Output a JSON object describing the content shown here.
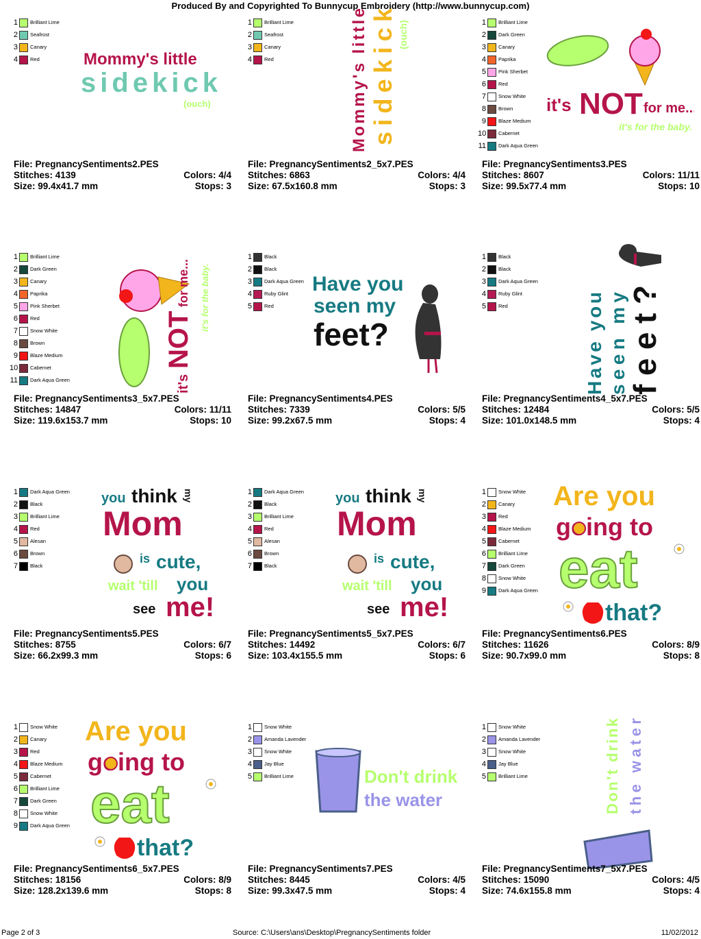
{
  "header": "Produced By and Copyrighted To Bunnycup Embroidery (http://www.bunnycup.com)",
  "labels": {
    "file": "File: ",
    "stitches": "Stitches: ",
    "colors": "Colors: ",
    "size": "Size: ",
    "stops": "Stops: "
  },
  "designs": [
    {
      "file": "PregnancySentiments2.PES",
      "stitches": "4139",
      "colors": "4/4",
      "size": "99.4x41.7 mm",
      "stops": "3",
      "palette": [
        {
          "name": "Brilliant Lime",
          "color": "#b6ff6e"
        },
        {
          "name": "Seafrost",
          "color": "#6fc9b0"
        },
        {
          "name": "Canary",
          "color": "#f2b51c"
        },
        {
          "name": "Red",
          "color": "#b5144a"
        }
      ],
      "art": [
        "Mommy's little",
        "sidekick",
        "(ouch)"
      ]
    },
    {
      "file": "PregnancySentiments2_5x7.PES",
      "stitches": "6863",
      "colors": "4/4",
      "size": "67.5x160.8 mm",
      "stops": "3",
      "palette": [
        {
          "name": "Brilliant Lime",
          "color": "#b6ff6e"
        },
        {
          "name": "Seafrost",
          "color": "#6fc9b0"
        },
        {
          "name": "Canary",
          "color": "#f2b51c"
        },
        {
          "name": "Red",
          "color": "#b5144a"
        }
      ],
      "art": [
        "Mommy's little",
        "sidekick",
        "(ouch)"
      ]
    },
    {
      "file": "PregnancySentiments3.PES",
      "stitches": "8607",
      "colors": "11/11",
      "size": "99.5x77.4 mm",
      "stops": "10",
      "palette": [
        {
          "name": "Brilliant Lime",
          "color": "#b6ff6e"
        },
        {
          "name": "Dark Green",
          "color": "#15473a"
        },
        {
          "name": "Canary",
          "color": "#f2b51c"
        },
        {
          "name": "Paprika",
          "color": "#f2642a"
        },
        {
          "name": "Pink Sherbet",
          "color": "#ffa6e8"
        },
        {
          "name": "Red",
          "color": "#b5144a"
        },
        {
          "name": "Snow White",
          "color": "#ffffff"
        },
        {
          "name": "Brown",
          "color": "#6b4a3f"
        },
        {
          "name": "Blaze Medium",
          "color": "#f21616"
        },
        {
          "name": "Cabernet",
          "color": "#7a2a3b"
        },
        {
          "name": "Dark Aqua Green",
          "color": "#167a82"
        }
      ],
      "art": [
        "it's",
        "NOT",
        "for me...",
        "it's for the baby."
      ]
    },
    {
      "file": "PregnancySentiments3_5x7.PES",
      "stitches": "14847",
      "colors": "11/11",
      "size": "119.6x153.7 mm",
      "stops": "10",
      "palette": [
        {
          "name": "Brilliant Lime",
          "color": "#b6ff6e"
        },
        {
          "name": "Dark Green",
          "color": "#15473a"
        },
        {
          "name": "Canary",
          "color": "#f2b51c"
        },
        {
          "name": "Paprika",
          "color": "#f2642a"
        },
        {
          "name": "Pink Sherbet",
          "color": "#ffa6e8"
        },
        {
          "name": "Red",
          "color": "#b5144a"
        },
        {
          "name": "Snow White",
          "color": "#ffffff"
        },
        {
          "name": "Brown",
          "color": "#6b4a3f"
        },
        {
          "name": "Blaze Medium",
          "color": "#f21616"
        },
        {
          "name": "Cabernet",
          "color": "#7a2a3b"
        },
        {
          "name": "Dark Aqua Green",
          "color": "#167a82"
        }
      ],
      "art": [
        "it's",
        "NOT",
        "for me...",
        "it's for the baby."
      ]
    },
    {
      "file": "PregnancySentiments4.PES",
      "stitches": "7339",
      "colors": "5/5",
      "size": "99.2x67.5 mm",
      "stops": "4",
      "palette": [
        {
          "name": "Black",
          "color": "#333333"
        },
        {
          "name": "Black",
          "color": "#111111"
        },
        {
          "name": "Dark Aqua Green",
          "color": "#167a82"
        },
        {
          "name": "Ruby Glint",
          "color": "#b51a55"
        },
        {
          "name": "Red",
          "color": "#b5144a"
        }
      ],
      "art": [
        "Have you",
        "seen my",
        "feet?"
      ]
    },
    {
      "file": "PregnancySentiments4_5x7.PES",
      "stitches": "12484",
      "colors": "5/5",
      "size": "101.0x148.5 mm",
      "stops": "4",
      "palette": [
        {
          "name": "Black",
          "color": "#333333"
        },
        {
          "name": "Black",
          "color": "#111111"
        },
        {
          "name": "Dark Aqua Green",
          "color": "#167a82"
        },
        {
          "name": "Ruby Glint",
          "color": "#b51a55"
        },
        {
          "name": "Red",
          "color": "#b5144a"
        }
      ],
      "art": [
        "Have you",
        "seen my",
        "feet?"
      ]
    },
    {
      "file": "PregnancySentiments5.PES",
      "stitches": "8755",
      "colors": "6/7",
      "size": "66.2x99.3 mm",
      "stops": "6",
      "palette": [
        {
          "name": "Dark Aqua Green",
          "color": "#167a82"
        },
        {
          "name": "Black",
          "color": "#111111"
        },
        {
          "name": "Brilliant Lime",
          "color": "#b6ff6e"
        },
        {
          "name": "Red",
          "color": "#b5144a"
        },
        {
          "name": "Alesan",
          "color": "#e0b9a0"
        },
        {
          "name": "Brown",
          "color": "#6b4a3f"
        },
        {
          "name": "Black",
          "color": "#000000"
        }
      ],
      "art": [
        "you",
        "think",
        "my",
        "Mom",
        "is",
        "cute,",
        "wait 'till",
        "you",
        "see",
        "me!"
      ]
    },
    {
      "file": "PregnancySentiments5_5x7.PES",
      "stitches": "14492",
      "colors": "6/7",
      "size": "103.4x155.5 mm",
      "stops": "6",
      "palette": [
        {
          "name": "Dark Aqua Green",
          "color": "#167a82"
        },
        {
          "name": "Black",
          "color": "#111111"
        },
        {
          "name": "Brilliant Lime",
          "color": "#b6ff6e"
        },
        {
          "name": "Red",
          "color": "#b5144a"
        },
        {
          "name": "Alesan",
          "color": "#e0b9a0"
        },
        {
          "name": "Brown",
          "color": "#6b4a3f"
        },
        {
          "name": "Black",
          "color": "#000000"
        }
      ],
      "art": [
        "you",
        "think",
        "my",
        "Mom",
        "is",
        "cute,",
        "wait 'till",
        "you",
        "see",
        "me!"
      ]
    },
    {
      "file": "PregnancySentiments6.PES",
      "stitches": "11626",
      "colors": "8/9",
      "size": "90.7x99.0 mm",
      "stops": "8",
      "palette": [
        {
          "name": "Snow White",
          "color": "#ffffff"
        },
        {
          "name": "Canary",
          "color": "#f2b51c"
        },
        {
          "name": "Red",
          "color": "#b5144a"
        },
        {
          "name": "Blaze Medium",
          "color": "#f21616"
        },
        {
          "name": "Cabernet",
          "color": "#7a2a3b"
        },
        {
          "name": "Brilliant Lime",
          "color": "#b6ff6e"
        },
        {
          "name": "Dark Green",
          "color": "#15473a"
        },
        {
          "name": "Snow White",
          "color": "#ffffff"
        },
        {
          "name": "Dark Aqua Green",
          "color": "#167a82"
        }
      ],
      "art": [
        "Are you",
        "going to",
        "eat",
        "that?"
      ]
    },
    {
      "file": "PregnancySentiments6_5x7.PES",
      "stitches": "18156",
      "colors": "8/9",
      "size": "128.2x139.6 mm",
      "stops": "8",
      "palette": [
        {
          "name": "Snow White",
          "color": "#ffffff"
        },
        {
          "name": "Canary",
          "color": "#f2b51c"
        },
        {
          "name": "Red",
          "color": "#b5144a"
        },
        {
          "name": "Blaze Medium",
          "color": "#f21616"
        },
        {
          "name": "Cabernet",
          "color": "#7a2a3b"
        },
        {
          "name": "Brilliant Lime",
          "color": "#b6ff6e"
        },
        {
          "name": "Dark Green",
          "color": "#15473a"
        },
        {
          "name": "Snow White",
          "color": "#ffffff"
        },
        {
          "name": "Dark Aqua Green",
          "color": "#167a82"
        }
      ],
      "art": [
        "Are you",
        "going to",
        "eat",
        "that?"
      ]
    },
    {
      "file": "PregnancySentiments7.PES",
      "stitches": "8445",
      "colors": "4/5",
      "size": "99.3x47.5 mm",
      "stops": "4",
      "palette": [
        {
          "name": "Snow White",
          "color": "#ffffff"
        },
        {
          "name": "Amanda Lavender",
          "color": "#9a94e8"
        },
        {
          "name": "Snow White",
          "color": "#ffffff"
        },
        {
          "name": "Jay Blue",
          "color": "#4a5f8a"
        },
        {
          "name": "Brilliant Lime",
          "color": "#b6ff6e"
        }
      ],
      "art": [
        "Don't drink",
        "the water"
      ]
    },
    {
      "file": "PregnancySentiments7_5x7.PES",
      "stitches": "15090",
      "colors": "4/5",
      "size": "74.6x155.8 mm",
      "stops": "4",
      "palette": [
        {
          "name": "Snow White",
          "color": "#ffffff"
        },
        {
          "name": "Amanda Lavender",
          "color": "#9a94e8"
        },
        {
          "name": "Snow White",
          "color": "#ffffff"
        },
        {
          "name": "Jay Blue",
          "color": "#4a5f8a"
        },
        {
          "name": "Brilliant Lime",
          "color": "#b6ff6e"
        }
      ],
      "art": [
        "Don't drink",
        "the water"
      ]
    }
  ],
  "footer": {
    "page": "Page 2 of 3",
    "source": "Source: C:\\Users\\ans\\Desktop\\PregnancySentiments folder",
    "date": "11/02/2012"
  }
}
